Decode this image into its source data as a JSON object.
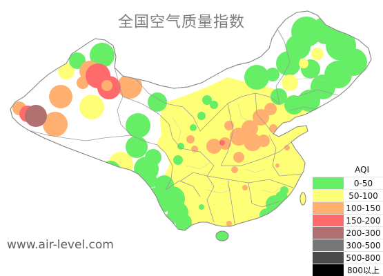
{
  "title": "全国空气质量指数",
  "watermark": "www.air-level.com",
  "legend": {
    "title": "AQI",
    "items": [
      {
        "label": "0-50",
        "color": "#66ee66"
      },
      {
        "label": "50-100",
        "color": "#ffff77"
      },
      {
        "label": "100-150",
        "color": "#ffb070"
      },
      {
        "label": "150-200",
        "color": "#ff6a6a"
      },
      {
        "label": "200-300",
        "color": "#b07070"
      },
      {
        "label": "300-500",
        "color": "#777777"
      },
      {
        "label": "500-800",
        "color": "#4a4a4a"
      },
      {
        "label": "800以上",
        "color": "#000000"
      }
    ]
  },
  "map": {
    "background_color": "#ffffff",
    "boundary_color": "#8a8a8a"
  }
}
